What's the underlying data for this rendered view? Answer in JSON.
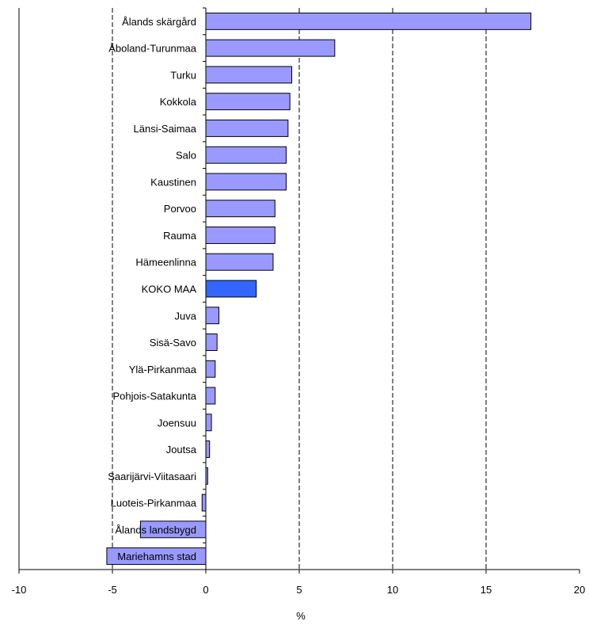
{
  "colors": {
    "bar": "#9999ff",
    "bar_highlight": "#3366ff",
    "bar_stroke": "#000000",
    "axis": "#000000",
    "grid": "#000000"
  },
  "chart_data": {
    "type": "bar",
    "orientation": "horizontal",
    "title": "",
    "xlabel": "%",
    "ylabel": "",
    "xlim": [
      -10,
      20
    ],
    "x_ticks": [
      -10,
      -5,
      0,
      5,
      10,
      15,
      20
    ],
    "grid": "vertical dashed at 5-unit steps",
    "legend": "none",
    "highlight_category": "KOKO MAA",
    "categories": [
      "Ålands skärgård",
      "Åboland-Turunmaa",
      "Turku",
      "Kokkola",
      "Länsi-Saimaa",
      "Salo",
      "Kaustinen",
      "Porvoo",
      "Rauma",
      "Hämeenlinna",
      "KOKO MAA",
      "Juva",
      "Sisä-Savo",
      "Ylä-Pirkanmaa",
      "Pohjois-Satakunta",
      "Joensuu",
      "Joutsa",
      "Saarijärvi-Viitasaari",
      "Luoteis-Pirkanmaa",
      "Ålands landsbygd",
      "Mariehamns stad"
    ],
    "values": [
      17.4,
      6.9,
      4.6,
      4.5,
      4.4,
      4.3,
      4.3,
      3.7,
      3.7,
      3.6,
      2.7,
      0.7,
      0.6,
      0.5,
      0.5,
      0.3,
      0.2,
      0.1,
      -0.2,
      -3.5,
      -5.3
    ]
  }
}
